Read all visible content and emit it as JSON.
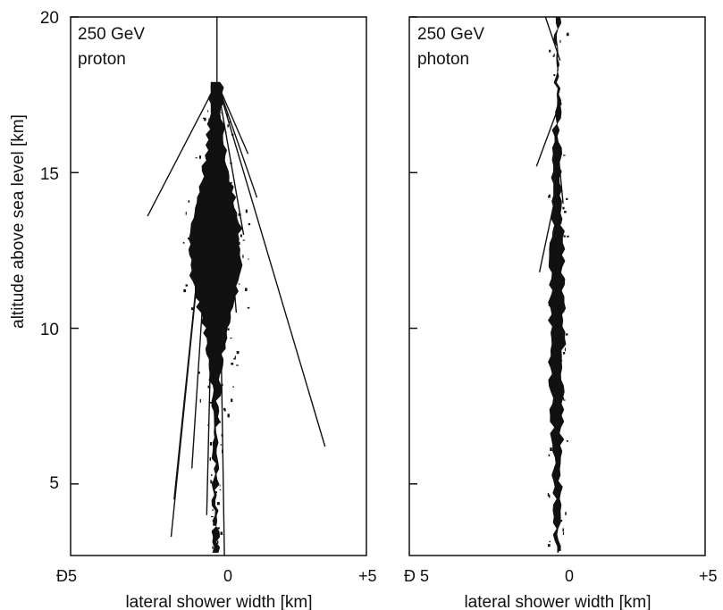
{
  "figure": {
    "ylabel": "altitude above sea level [km]",
    "colors": {
      "ink": "#111111",
      "background": "#ffffff"
    }
  },
  "chart_data": [
    {
      "type": "scatter",
      "panel": "left",
      "annotation": [
        "250 GeV",
        "proton"
      ],
      "xlabel": "lateral shower width [km]",
      "ylabel": "altitude above sea level [km]",
      "xlim": [
        -5,
        5
      ],
      "ylim": [
        2.7,
        20
      ],
      "x_tick_labels": [
        "Ð5",
        "0",
        "+5"
      ],
      "y_ticks": [
        5,
        10,
        15,
        20
      ],
      "y_tick_labels": [
        "5",
        "10",
        "15",
        "20"
      ],
      "grid": false,
      "first_interaction_altitude_km": 17.9,
      "core_x_km": -0.1,
      "tracks": [
        {
          "points": [
            [
              -0.05,
              20
            ],
            [
              -0.05,
              17.9
            ]
          ]
        },
        {
          "points": [
            [
              -0.05,
              17.9
            ],
            [
              -2.4,
              13.6
            ]
          ]
        },
        {
          "points": [
            [
              -0.05,
              17.9
            ],
            [
              3.6,
              6.2
            ]
          ]
        },
        {
          "points": [
            [
              -0.05,
              17.9
            ],
            [
              1.3,
              14.2
            ]
          ]
        },
        {
          "points": [
            [
              -0.05,
              17.9
            ],
            [
              1.0,
              15.6
            ]
          ]
        },
        {
          "points": [
            [
              -0.05,
              17.9
            ],
            [
              0.85,
              13.0
            ]
          ]
        },
        {
          "points": [
            [
              -0.05,
              17.9
            ],
            [
              0.6,
              10.5
            ]
          ]
        },
        {
          "points": [
            [
              -0.05,
              17.9
            ],
            [
              -1.5,
              4.5
            ]
          ]
        },
        {
          "points": [
            [
              -0.05,
              17.9
            ],
            [
              -0.9,
              5.5
            ]
          ]
        },
        {
          "points": [
            [
              -0.05,
              17.9
            ],
            [
              -0.4,
              4.0
            ]
          ]
        },
        {
          "points": [
            [
              -0.05,
              17.9
            ],
            [
              0.2,
              2.7
            ]
          ]
        },
        {
          "points": [
            [
              -0.05,
              17.9
            ],
            [
              -1.6,
              3.3
            ]
          ]
        }
      ]
    },
    {
      "type": "scatter",
      "panel": "right",
      "annotation": [
        "250 GeV",
        "photon"
      ],
      "xlabel": "lateral shower width [km]",
      "xlim": [
        -5,
        5
      ],
      "ylim": [
        2.7,
        20
      ],
      "x_tick_labels": [
        "Ð 5",
        "0",
        "+5"
      ],
      "y_ticks": [
        5,
        10,
        15,
        20
      ],
      "grid": false,
      "first_interaction_altitude_km": 20,
      "core_x_km": 0,
      "tracks": [
        {
          "points": [
            [
              -0.4,
              20
            ],
            [
              0.1,
              18.6
            ]
          ]
        },
        {
          "points": [
            [
              0.0,
              17.0
            ],
            [
              -0.7,
              15.2
            ]
          ]
        },
        {
          "points": [
            [
              0.0,
              14.5
            ],
            [
              -0.6,
              11.8
            ]
          ]
        },
        {
          "points": [
            [
              0.0,
              16.0
            ],
            [
              0.2,
              14.0
            ]
          ]
        }
      ]
    }
  ]
}
